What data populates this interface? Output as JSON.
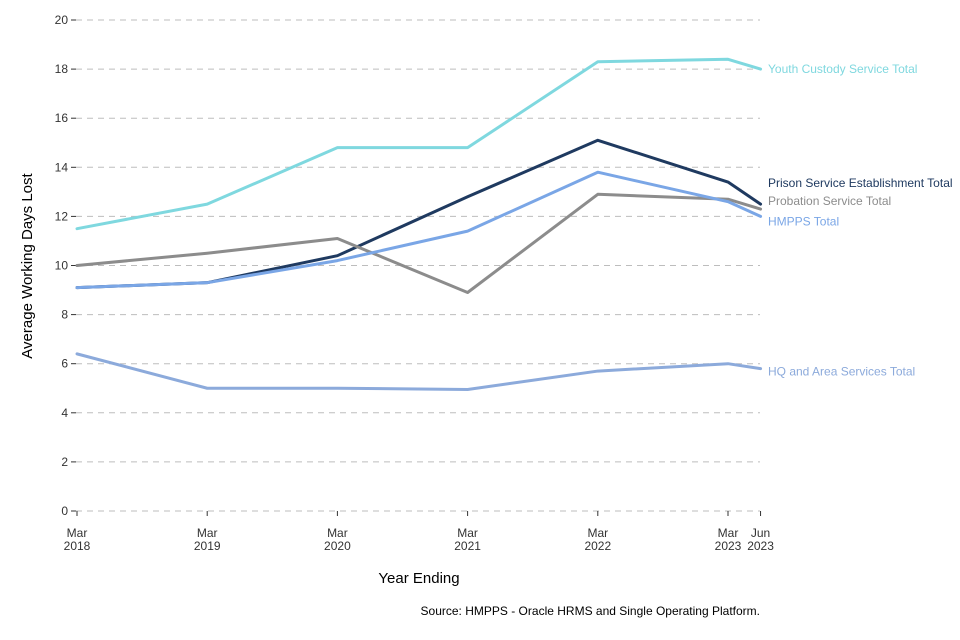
{
  "chart_data": {
    "type": "line",
    "title": "",
    "xlabel": "Year Ending",
    "ylabel": "Average Working Days Lost",
    "ylim": [
      0,
      20
    ],
    "yticks": [
      0,
      2,
      4,
      6,
      8,
      10,
      12,
      14,
      16,
      18,
      20
    ],
    "grid": true,
    "legend": "direct labels at line ends (right)",
    "x": [
      {
        "month": "Mar",
        "year": "2018",
        "t": 0
      },
      {
        "month": "Mar",
        "year": "2019",
        "t": 1
      },
      {
        "month": "Mar",
        "year": "2020",
        "t": 2
      },
      {
        "month": "Mar",
        "year": "2021",
        "t": 3
      },
      {
        "month": "Mar",
        "year": "2022",
        "t": 4
      },
      {
        "month": "Mar",
        "year": "2023",
        "t": 5
      },
      {
        "month": "Jun",
        "year": "2023",
        "t": 5.25
      }
    ],
    "series": [
      {
        "name": "Youth Custody Service Total",
        "color": "#7fd8df",
        "values": [
          11.5,
          12.5,
          14.8,
          14.8,
          18.3,
          18.4,
          18.0
        ]
      },
      {
        "name": "Prison Service Establishment Total",
        "color": "#1f3a60",
        "values": [
          9.1,
          9.3,
          10.4,
          12.8,
          15.1,
          13.4,
          12.5
        ]
      },
      {
        "name": "Probation Service Total",
        "color": "#8c8c8c",
        "values": [
          10.0,
          10.5,
          11.1,
          8.9,
          12.9,
          12.7,
          12.3
        ]
      },
      {
        "name": "HMPPS Total",
        "color": "#7aa6e6",
        "values": [
          9.1,
          9.3,
          10.2,
          11.4,
          13.8,
          12.6,
          12.0
        ]
      },
      {
        "name": "HQ and Area Services Total",
        "color": "#8caadb",
        "values": [
          6.4,
          5.0,
          5.0,
          4.95,
          5.7,
          6.0,
          5.8
        ]
      }
    ],
    "source": "Source: HMPPS - Oracle HRMS and Single Operating Platform."
  }
}
